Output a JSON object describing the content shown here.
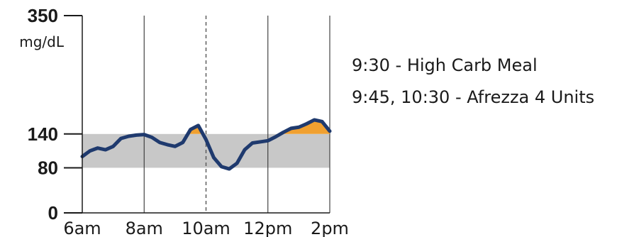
{
  "chart_data": {
    "type": "line",
    "title": "",
    "xlabel": "",
    "ylabel": "mg/dL",
    "ylim": [
      0,
      350
    ],
    "xlim": [
      "6am",
      "2pm"
    ],
    "x_ticks": [
      "6am",
      "8am",
      "10am",
      "12pm",
      "2pm"
    ],
    "y_ticks": [
      "0",
      "80",
      "140",
      "350"
    ],
    "grid": "vertical",
    "target_range": [
      80,
      140
    ],
    "marker_line_at": "10am",
    "series": [
      {
        "color": "#1f3a6e",
        "x": [
          "6:00",
          "6:15",
          "6:30",
          "6:45",
          "7:00",
          "7:15",
          "7:30",
          "7:45",
          "8:00",
          "8:15",
          "8:30",
          "8:45",
          "9:00",
          "9:15",
          "9:30",
          "9:45",
          "10:00",
          "10:15",
          "10:30",
          "10:45",
          "11:00",
          "11:15",
          "11:30",
          "11:45",
          "12:00",
          "12:15",
          "12:30",
          "12:45",
          "13:00",
          "13:15",
          "13:30",
          "13:45",
          "14:00"
        ],
        "y": [
          100,
          110,
          115,
          112,
          118,
          132,
          136,
          138,
          139,
          134,
          125,
          121,
          118,
          125,
          148,
          155,
          130,
          98,
          82,
          78,
          88,
          112,
          124,
          126,
          128,
          135,
          143,
          150,
          152,
          158,
          165,
          162,
          145
        ]
      }
    ],
    "highlight_above_range_color": "#f0a030",
    "range_band_color": "#c8c8c8"
  },
  "annotations": [
    "9:30 - High Carb Meal",
    "9:45, 10:30 - Afrezza 4 Units"
  ]
}
